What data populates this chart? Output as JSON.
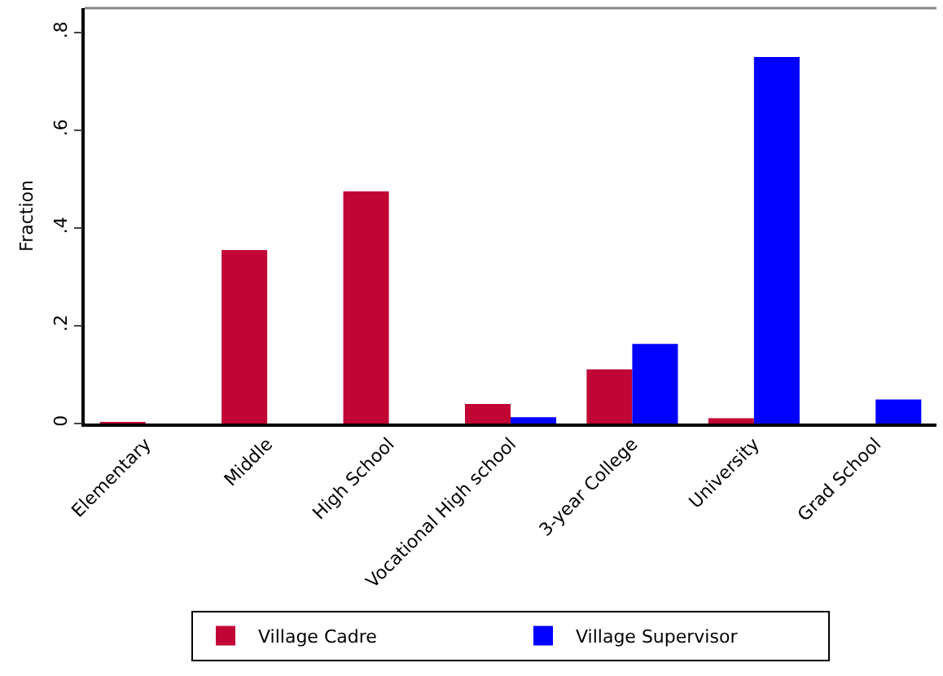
{
  "chart_data": {
    "type": "bar",
    "ylabel": "Fraction",
    "categories": [
      "Elementary",
      "Middle",
      "High School",
      "Vocational High school",
      "3-year College",
      "University",
      "Grad School"
    ],
    "series": [
      {
        "name": "Village Cadre",
        "color": "#c10534",
        "values": [
          0.002,
          0.355,
          0.475,
          0.04,
          0.111,
          0.011,
          0
        ]
      },
      {
        "name": "Village Supervisor",
        "color": "#0000ff",
        "values": [
          0,
          0,
          0,
          0.013,
          0.163,
          0.75,
          0.049
        ]
      }
    ],
    "ylim": [
      0,
      0.85
    ],
    "yticks": [
      {
        "value": 0,
        "label": "0"
      },
      {
        "value": 0.2,
        "label": ".2"
      },
      {
        "value": 0.4,
        "label": ".4"
      },
      {
        "value": 0.6,
        "label": ".6"
      },
      {
        "value": 0.8,
        "label": ".8"
      }
    ],
    "grid": false,
    "legend": "bottom"
  }
}
